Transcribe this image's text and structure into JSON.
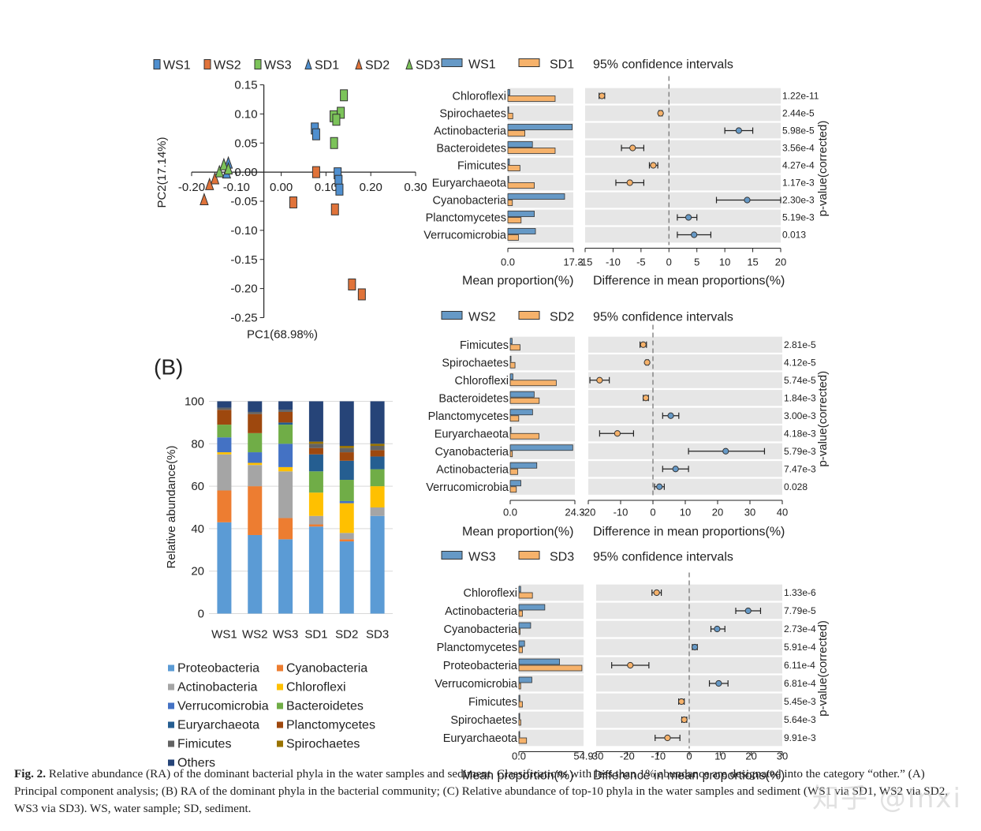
{
  "colors": {
    "ws": "#6699c6",
    "sd": "#f6b26b",
    "ws_pca": "#4f8fcf",
    "sd_pca": "#e0733a",
    "ws3_pca": "#7cc35a",
    "stripe": "#e6e6e6",
    "axis": "#222222"
  },
  "pca": {
    "legend": [
      "WS1",
      "WS2",
      "WS3",
      "SD1",
      "SD2",
      "SD3"
    ],
    "xlabel": "PC1(68.98%)",
    "ylabel": "PC2(17.14%)",
    "x_ticks": [
      "-0.20",
      "-0.10",
      "0.00",
      "0.10",
      "0.20",
      "0.30"
    ],
    "x_tick_values": [
      -0.2,
      -0.1,
      0.0,
      0.1,
      0.2,
      0.3
    ],
    "y_ticks": [
      "0.15",
      "0.10",
      "0.05",
      "0.00",
      "-0.05",
      "-0.10",
      "-0.15",
      "-0.20",
      "-0.25"
    ],
    "y_tick_values": [
      0.15,
      0.1,
      0.05,
      0.0,
      -0.05,
      -0.1,
      -0.15,
      -0.2,
      -0.25
    ],
    "xlim": [
      -0.2,
      0.3
    ],
    "ylim": [
      -0.25,
      0.15
    ],
    "points": [
      {
        "group": "WS1",
        "x": 0.075,
        "y": 0.075
      },
      {
        "group": "WS1",
        "x": 0.078,
        "y": 0.065
      },
      {
        "group": "WS1",
        "x": 0.126,
        "y": -0.002
      },
      {
        "group": "WS1",
        "x": 0.128,
        "y": -0.015
      },
      {
        "group": "WS1",
        "x": 0.13,
        "y": -0.03
      },
      {
        "group": "WS2",
        "x": 0.078,
        "y": 0.0
      },
      {
        "group": "WS2",
        "x": 0.027,
        "y": -0.052
      },
      {
        "group": "WS2",
        "x": 0.12,
        "y": -0.064
      },
      {
        "group": "WS2",
        "x": 0.158,
        "y": -0.193
      },
      {
        "group": "WS2",
        "x": 0.18,
        "y": -0.21
      },
      {
        "group": "WS3",
        "x": 0.14,
        "y": 0.132
      },
      {
        "group": "WS3",
        "x": 0.133,
        "y": 0.102
      },
      {
        "group": "WS3",
        "x": 0.117,
        "y": 0.096
      },
      {
        "group": "WS3",
        "x": 0.123,
        "y": 0.09
      },
      {
        "group": "WS3",
        "x": 0.118,
        "y": 0.05
      },
      {
        "group": "SD1",
        "x": -0.122,
        "y": -0.002
      },
      {
        "group": "SD1",
        "x": -0.118,
        "y": 0.015
      },
      {
        "group": "SD2",
        "x": -0.148,
        "y": -0.012
      },
      {
        "group": "SD2",
        "x": -0.16,
        "y": -0.022
      },
      {
        "group": "SD2",
        "x": -0.172,
        "y": -0.048
      },
      {
        "group": "SD3",
        "x": -0.138,
        "y": 0.0
      },
      {
        "group": "SD3",
        "x": -0.128,
        "y": 0.012
      },
      {
        "group": "SD3",
        "x": -0.118,
        "y": 0.005
      }
    ]
  },
  "panel_b_label": "(B)",
  "stacked": {
    "ylabel": "Relative abundance(%)",
    "y_ticks": [
      "0",
      "20",
      "40",
      "60",
      "80",
      "100"
    ],
    "y_tick_values": [
      0,
      20,
      40,
      60,
      80,
      100
    ],
    "categories": [
      "WS1",
      "WS2",
      "WS3",
      "SD1",
      "SD2",
      "SD3"
    ],
    "series": [
      {
        "name": "Proteobacteria",
        "color": "#5b9bd5",
        "values": [
          43,
          37,
          35,
          41,
          34,
          46
        ]
      },
      {
        "name": "Cyanobacteria",
        "color": "#ed7d31",
        "values": [
          15,
          23,
          10,
          1,
          1,
          0
        ]
      },
      {
        "name": "Actinobacteria",
        "color": "#a5a5a5",
        "values": [
          17,
          10,
          22,
          4,
          3,
          4
        ]
      },
      {
        "name": "Chloroflexi",
        "color": "#ffc000",
        "values": [
          1,
          1,
          2,
          11,
          14,
          10
        ]
      },
      {
        "name": "Verrucomicrobia",
        "color": "#4472c4",
        "values": [
          7,
          5,
          11,
          0,
          1,
          0
        ]
      },
      {
        "name": "Bacteroidetes",
        "color": "#70ad47",
        "values": [
          6,
          9,
          9,
          10,
          10,
          8
        ]
      },
      {
        "name": "Euryarchaeota",
        "color": "#255e91",
        "values": [
          0,
          0,
          1,
          8,
          9,
          6
        ]
      },
      {
        "name": "Planctomycetes",
        "color": "#9e480e",
        "values": [
          7,
          9,
          5,
          3,
          4,
          3
        ]
      },
      {
        "name": "Fimicutes",
        "color": "#636363",
        "values": [
          1,
          1,
          1,
          2,
          2,
          2
        ]
      },
      {
        "name": "Spirochaetes",
        "color": "#997300",
        "values": [
          0,
          0,
          0,
          1,
          1,
          1
        ]
      },
      {
        "name": "Others",
        "color": "#264478",
        "values": [
          3,
          5,
          4,
          19,
          21,
          20
        ]
      }
    ],
    "legend_order": [
      [
        "Proteobacteria",
        "Cyanobacteria"
      ],
      [
        "Actinobacteria",
        "Chloroflexi"
      ],
      [
        "Verrucomicrobia",
        "Bacteroidetes"
      ],
      [
        "Euryarchaeota",
        "Planctomycetes"
      ],
      [
        "Fimicutes",
        "Spirochaetes"
      ],
      [
        "Others"
      ]
    ]
  },
  "ci_panels": [
    {
      "ws": "WS1",
      "sd": "SD1",
      "ci_title": "95% confidence intervals",
      "prop_xlabel": "Mean proportion(%)",
      "diff_xlabel": "Difference in mean proportions(%)",
      "pval_label": "p-value(corrected)",
      "prop_max": 17.3,
      "prop_ticks": [
        "0.0",
        "17.3"
      ],
      "diff_range": [
        -15,
        20
      ],
      "diff_ticks": [
        -15,
        -10,
        -5,
        0,
        5,
        10,
        15,
        20
      ],
      "rows": [
        {
          "name": "Chloroflexi",
          "ws": 0.5,
          "sd": 12.5,
          "diff": -12,
          "lo": -12.5,
          "hi": -11.5,
          "p": "1.22e-11"
        },
        {
          "name": "Spirochaetes",
          "ws": 0.2,
          "sd": 1.3,
          "diff": -1.5,
          "lo": -1.8,
          "hi": -1.2,
          "p": "2.44e-5"
        },
        {
          "name": "Actinobacteria",
          "ws": 17.0,
          "sd": 4.5,
          "diff": 12.5,
          "lo": 10,
          "hi": 15,
          "p": "5.98e-5"
        },
        {
          "name": "Bacteroidetes",
          "ws": 6.5,
          "sd": 12.5,
          "diff": -6.5,
          "lo": -8.5,
          "hi": -4.5,
          "p": "3.56e-4"
        },
        {
          "name": "Fimicutes",
          "ws": 0.4,
          "sd": 3.2,
          "diff": -2.8,
          "lo": -3.5,
          "hi": -2.0,
          "p": "4.27e-4"
        },
        {
          "name": "Euryarchaeota",
          "ws": 0.2,
          "sd": 7.0,
          "diff": -7,
          "lo": -9.5,
          "hi": -4.5,
          "p": "1.17e-3"
        },
        {
          "name": "Cyanobacteria",
          "ws": 15.0,
          "sd": 1.2,
          "diff": 14,
          "lo": 8.5,
          "hi": 20,
          "p": "2.30e-3"
        },
        {
          "name": "Planctomycetes",
          "ws": 7.0,
          "sd": 3.5,
          "diff": 3.5,
          "lo": 1.5,
          "hi": 5.0,
          "p": "5.19e-3"
        },
        {
          "name": "Verrucomicrobia",
          "ws": 7.3,
          "sd": 2.8,
          "diff": 4.5,
          "lo": 1.5,
          "hi": 7.5,
          "p": "0.013"
        }
      ]
    },
    {
      "ws": "WS2",
      "sd": "SD2",
      "ci_title": "95% confidence intervals",
      "prop_xlabel": "Mean proportion(%)",
      "diff_xlabel": "Difference in mean proportions(%)",
      "pval_label": "p-value(corrected)",
      "prop_max": 24.3,
      "prop_ticks": [
        "0.0",
        "24.3"
      ],
      "diff_range": [
        -20,
        40
      ],
      "diff_ticks": [
        -20,
        -10,
        0,
        10,
        20,
        30,
        40
      ],
      "rows": [
        {
          "name": "Fimicutes",
          "ws": 0.7,
          "sd": 3.7,
          "diff": -3.0,
          "lo": -4.0,
          "hi": -2.0,
          "p": "2.81e-5"
        },
        {
          "name": "Spirochaetes",
          "ws": 0.1,
          "sd": 1.8,
          "diff": -1.8,
          "lo": -2.2,
          "hi": -1.4,
          "p": "4.12e-5"
        },
        {
          "name": "Chloroflexi",
          "ws": 1.0,
          "sd": 17.3,
          "diff": -16.5,
          "lo": -19.5,
          "hi": -13.5,
          "p": "5.74e-5"
        },
        {
          "name": "Bacteroidetes",
          "ws": 9.0,
          "sd": 10.9,
          "diff": -2.2,
          "lo": -3.0,
          "hi": -1.4,
          "p": "1.84e-3"
        },
        {
          "name": "Planctomycetes",
          "ws": 8.4,
          "sd": 3.2,
          "diff": 5.5,
          "lo": 3.0,
          "hi": 8.0,
          "p": "3.00e-3"
        },
        {
          "name": "Euryarchaeota",
          "ws": 0.2,
          "sd": 10.8,
          "diff": -11,
          "lo": -16.5,
          "hi": -6.0,
          "p": "4.18e-3"
        },
        {
          "name": "Cyanobacteria",
          "ws": 23.5,
          "sd": 0.8,
          "diff": 22.5,
          "lo": 11,
          "hi": 34.5,
          "p": "5.79e-3"
        },
        {
          "name": "Actinobacteria",
          "ws": 10.0,
          "sd": 2.8,
          "diff": 7.0,
          "lo": 3.0,
          "hi": 11.0,
          "p": "7.47e-3"
        },
        {
          "name": "Verrucomicrobia",
          "ws": 4.0,
          "sd": 2.3,
          "diff": 2.0,
          "lo": 0.5,
          "hi": 3.5,
          "p": "0.028"
        }
      ]
    },
    {
      "ws": "WS3",
      "sd": "SD3",
      "ci_title": "95% confidence intervals",
      "prop_xlabel": "Mean proportion(%)",
      "diff_xlabel": "Difference in mean proportions(%)",
      "pval_label": "p-value(corrected)",
      "prop_max": 54.9,
      "prop_ticks": [
        "0.0",
        "54.9"
      ],
      "diff_range": [
        -30,
        30
      ],
      "diff_ticks": [
        -30,
        -20,
        -10,
        0,
        10,
        20,
        30
      ],
      "rows": [
        {
          "name": "Chloroflexi",
          "ws": 1.5,
          "sd": 11.5,
          "diff": -10.5,
          "lo": -12.0,
          "hi": -9.0,
          "p": "1.33e-6"
        },
        {
          "name": "Actinobacteria",
          "ws": 22.0,
          "sd": 3.0,
          "diff": 19,
          "lo": 15,
          "hi": 23,
          "p": "7.79e-5"
        },
        {
          "name": "Cyanobacteria",
          "ws": 10.0,
          "sd": 1.0,
          "diff": 9,
          "lo": 7,
          "hi": 11.5,
          "p": "2.73e-4"
        },
        {
          "name": "Planctomycetes",
          "ws": 4.8,
          "sd": 3.0,
          "diff": 1.8,
          "lo": 1.0,
          "hi": 2.6,
          "p": "5.91e-4"
        },
        {
          "name": "Proteobacteria",
          "ws": 34.5,
          "sd": 53.5,
          "diff": -19,
          "lo": -25,
          "hi": -13,
          "p": "6.11e-4"
        },
        {
          "name": "Verrucomicrobia",
          "ws": 11.0,
          "sd": 1.5,
          "diff": 9.5,
          "lo": 6.5,
          "hi": 12.5,
          "p": "6.81e-4"
        },
        {
          "name": "Fimicutes",
          "ws": 0.8,
          "sd": 3.0,
          "diff": -2.5,
          "lo": -3.4,
          "hi": -1.6,
          "p": "5.45e-3"
        },
        {
          "name": "Spirochaetes",
          "ws": 0.2,
          "sd": 1.6,
          "diff": -1.6,
          "lo": -2.4,
          "hi": -0.8,
          "p": "5.64e-3"
        },
        {
          "name": "Euryarchaeota",
          "ws": 0.5,
          "sd": 6.5,
          "diff": -7,
          "lo": -11,
          "hi": -3,
          "p": "9.91e-3"
        }
      ]
    }
  ],
  "caption": {
    "label": "Fig. 2.",
    "text": "Relative abundance (RA) of the dominant bacterial phyla in the water samples and sediment. Classifications with less than 1% abundance are designated into the category “other.” (A) Principal component analysis; (B) RA of the dominant phyla in the bacterial community; (C) Relative abundance of top-10 phyla in the water samples and sediment (WS1 via SD1, WS2 via SD2, WS3 via SD3). WS, water sample; SD, sediment."
  },
  "watermark": "知乎 @Inxi"
}
